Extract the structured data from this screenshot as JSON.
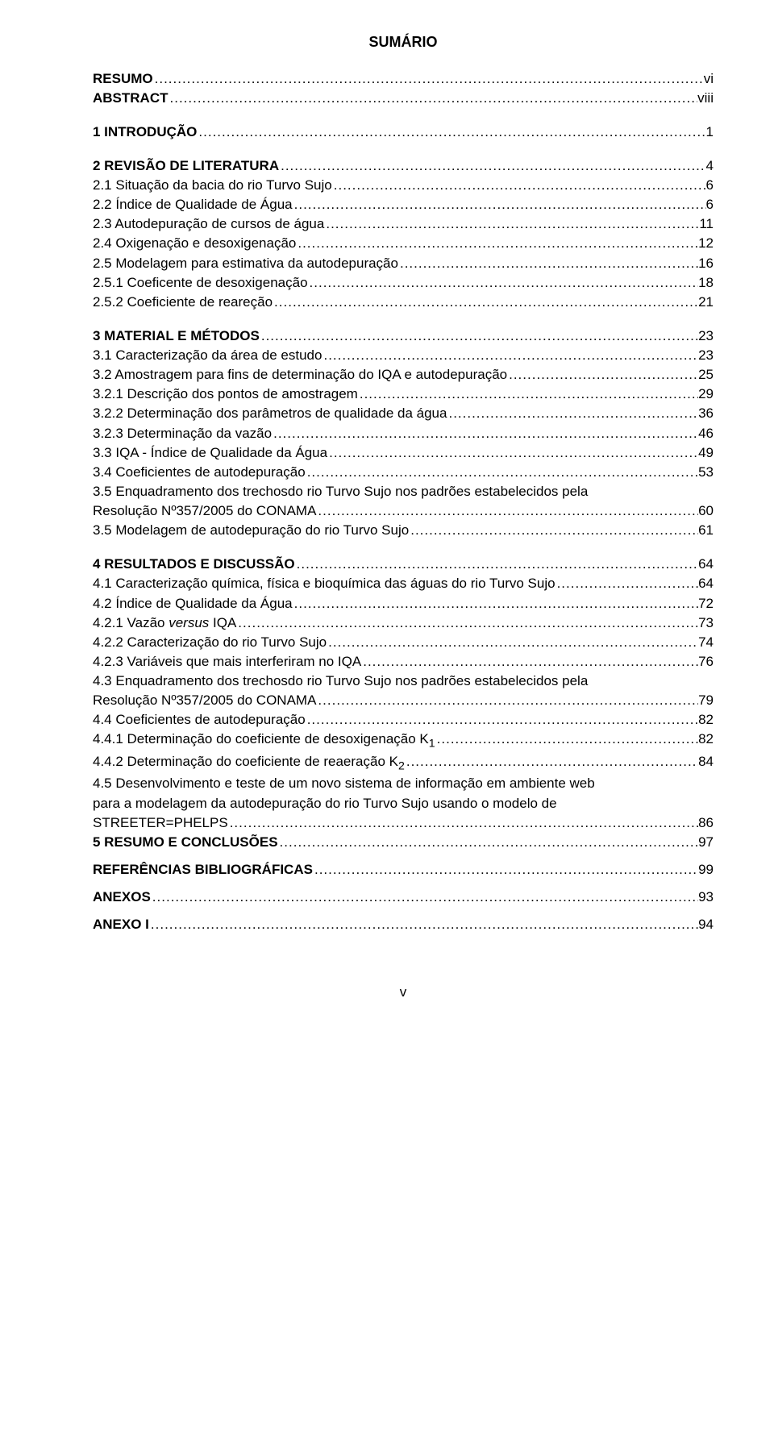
{
  "title": "SUMÁRIO",
  "page_number": "v",
  "entries": [
    {
      "label": "RESUMO",
      "page": "vi",
      "bold": true
    },
    {
      "label": "ABSTRACT",
      "page": "viii",
      "bold": true
    },
    {
      "spacer": true
    },
    {
      "label": "1 INTRODUÇÃO",
      "page": "1",
      "bold": true
    },
    {
      "spacer": true
    },
    {
      "label": "2 REVISÃO DE LITERATURA",
      "page": "4",
      "bold": true
    },
    {
      "label": "2.1 Situação da bacia do rio Turvo Sujo",
      "page": "6"
    },
    {
      "label": "2.2 Índice de Qualidade de Água",
      "page": "6"
    },
    {
      "label": "2.3 Autodepuração de cursos de água",
      "page": "11"
    },
    {
      "label": "2.4 Oxigenação e desoxigenação",
      "page": "12"
    },
    {
      "label": "2.5 Modelagem para estimativa da autodepuração",
      "page": "16"
    },
    {
      "label": "2.5.1 Coeficente de desoxigenação",
      "page": "18"
    },
    {
      "label": "2.5.2 Coeficiente de reareção",
      "page": "21"
    },
    {
      "spacer": true
    },
    {
      "label": "3 MATERIAL E MÉTODOS",
      "page": "23",
      "bold": true
    },
    {
      "label": "3.1 Caracterização da área de estudo",
      "page": "23"
    },
    {
      "label": "3.2 Amostragem para fins de determinação do IQA e autodepuração",
      "page": "25"
    },
    {
      "label": "3.2.1 Descrição dos pontos de amostragem",
      "page": "29"
    },
    {
      "label": "3.2.2 Determinação dos parâmetros de qualidade da água",
      "page": "36"
    },
    {
      "label": "3.2.3 Determinação da vazão",
      "page": "46"
    },
    {
      "label": "3.3 IQA - Índice de Qualidade da Água",
      "page": "49"
    },
    {
      "label": "3.4 Coeficientes de autodepuração",
      "page": "53"
    },
    {
      "label_pre": "3.5 Enquadramento dos trechosdo rio Turvo Sujo nos padrões estabelecidos pela",
      "label": "Resolução Nº357/2005 do CONAMA",
      "page": "60",
      "multiline": true
    },
    {
      "label": "3.5 Modelagem de autodepuração do rio Turvo Sujo",
      "page": "61"
    },
    {
      "spacer": true
    },
    {
      "label": "4 RESULTADOS E DISCUSSÃO",
      "page": "64",
      "bold": true
    },
    {
      "label": "4.1 Caracterização química, física e bioquímica das águas do rio Turvo Sujo",
      "page": "64"
    },
    {
      "label": "4.2 Índice de Qualidade da Água",
      "page": "72"
    },
    {
      "label_html": "4.2.1  Vazão <span class=\"italic\">versus</span> IQA",
      "page": "73"
    },
    {
      "label": "4.2.2  Caracterização do rio Turvo Sujo",
      "page": "74"
    },
    {
      "label": "4.2.3  Variáveis que mais interferiram no IQA",
      "page": "76"
    },
    {
      "label_pre": "4.3 Enquadramento dos trechosdo rio Turvo Sujo nos padrões estabelecidos pela",
      "label": "Resolução Nº357/2005 do CONAMA",
      "page": "79",
      "multiline": true
    },
    {
      "label": "4.4  Coeficientes de autodepuração",
      "page": "82"
    },
    {
      "label_html": "4.4.1  Determinação do coeficiente de desoxigenação K<sub>1</sub>",
      "page": "82"
    },
    {
      "label_html": "4.4.2  Determinação do coeficiente de reaeração K<sub>2</sub>",
      "page": "84"
    },
    {
      "label_pre_html": "4.5 Desenvolvimento e teste de um novo sistema de informação em ambiente <span class=\"italic\">web</span><br>para a modelagem da autodepuração do rio Turvo Sujo usando o modelo de",
      "label": "STREETER=PHELPS",
      "page": "86",
      "multiline": true
    },
    {
      "label": "5 RESUMO E CONCLUSÕES",
      "page": "97",
      "bold": true
    },
    {
      "spacer": true,
      "small": true
    },
    {
      "label": "REFERÊNCIAS BIBLIOGRÁFICAS",
      "page": "99",
      "bold": true
    },
    {
      "spacer": true,
      "small": true
    },
    {
      "label": "ANEXOS",
      "page": "93",
      "bold": true
    },
    {
      "spacer": true,
      "small": true
    },
    {
      "label": "ANEXO I",
      "page": "94",
      "bold": true
    }
  ]
}
